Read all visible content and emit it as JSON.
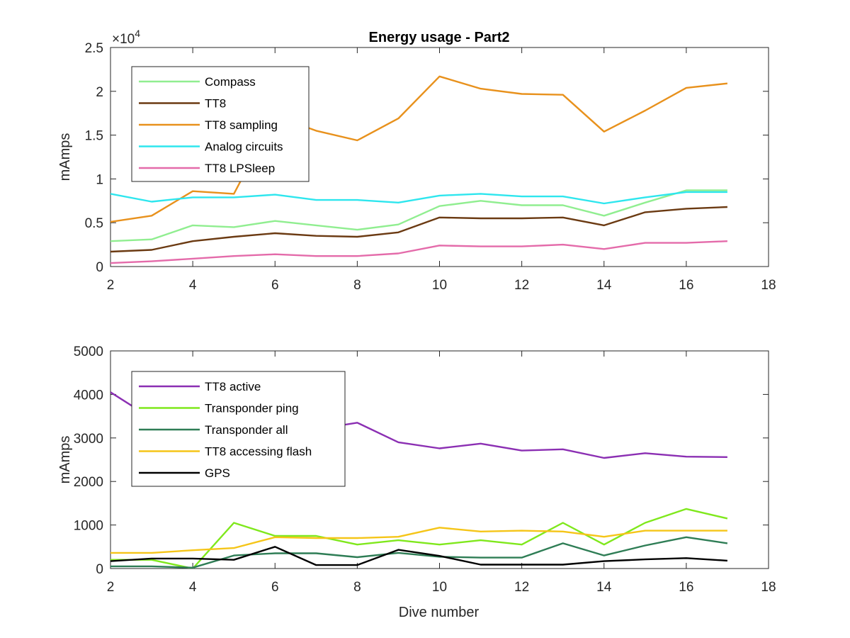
{
  "figure_title": "Energy usage - Part2",
  "chart_data": [
    {
      "type": "line",
      "title": "Energy usage - Part2",
      "xlabel": "",
      "ylabel": "mAmps",
      "xlim": [
        2,
        18
      ],
      "ylim": [
        0,
        25000
      ],
      "xticks": [
        2,
        4,
        6,
        8,
        10,
        12,
        14,
        16,
        18
      ],
      "xtick_labels": [
        "2",
        "4",
        "6",
        "8",
        "10",
        "12",
        "14",
        "16",
        "18"
      ],
      "yticks": [
        0,
        5000,
        10000,
        15000,
        20000,
        25000
      ],
      "ytick_labels": [
        "0",
        "0.5",
        "1",
        "1.5",
        "2",
        "2.5"
      ],
      "y_multiplier_base": "×10",
      "y_multiplier_exp": "4",
      "grid": false,
      "legend_position": "top-left",
      "x": [
        2,
        3,
        4,
        5,
        6,
        7,
        8,
        9,
        10,
        11,
        12,
        13,
        14,
        15,
        16,
        17
      ],
      "series": [
        {
          "name": "Compass",
          "color": "#90EE90",
          "values": [
            2900,
            3100,
            4700,
            4500,
            5200,
            4700,
            4200,
            4800,
            6900,
            7500,
            7000,
            7000,
            5800,
            7300,
            8700,
            8700
          ]
        },
        {
          "name": "TT8",
          "color": "#6B3A12",
          "values": [
            1700,
            1900,
            2900,
            3400,
            3800,
            3500,
            3400,
            3900,
            5600,
            5500,
            5500,
            5600,
            4700,
            6200,
            6600,
            6800
          ]
        },
        {
          "name": "TT8 sampling",
          "color": "#E8911C",
          "values": [
            5100,
            5800,
            8600,
            8300,
            17200,
            15500,
            14400,
            16900,
            21700,
            20300,
            19700,
            19600,
            15400,
            17800,
            20400,
            20900
          ]
        },
        {
          "name": "Analog circuits",
          "color": "#2EE6EE",
          "values": [
            8300,
            7400,
            7900,
            7900,
            8200,
            7600,
            7600,
            7300,
            8100,
            8300,
            8000,
            8000,
            7200,
            7900,
            8500,
            8500
          ]
        },
        {
          "name": "TT8 LPSleep",
          "color": "#E46BAA",
          "values": [
            400,
            600,
            900,
            1200,
            1400,
            1200,
            1200,
            1500,
            2400,
            2300,
            2300,
            2500,
            2000,
            2700,
            2700,
            2900
          ]
        }
      ]
    },
    {
      "type": "line",
      "title": "",
      "xlabel": "Dive number",
      "ylabel": "mAmps",
      "xlim": [
        2,
        18
      ],
      "ylim": [
        0,
        5000
      ],
      "xticks": [
        2,
        4,
        6,
        8,
        10,
        12,
        14,
        16,
        18
      ],
      "xtick_labels": [
        "2",
        "4",
        "6",
        "8",
        "10",
        "12",
        "14",
        "16",
        "18"
      ],
      "yticks": [
        0,
        1000,
        2000,
        3000,
        4000,
        5000
      ],
      "ytick_labels": [
        "0",
        "1000",
        "2000",
        "3000",
        "4000",
        "5000"
      ],
      "grid": false,
      "legend_position": "top-left",
      "x": [
        2,
        3,
        4,
        5,
        6,
        7,
        8,
        9,
        10,
        11,
        12,
        13,
        14,
        15,
        16,
        17
      ],
      "series": [
        {
          "name": "TT8 active",
          "color": "#8B2FB3",
          "values": [
            4050,
            3450,
            3150,
            3200,
            3250,
            3200,
            3350,
            2900,
            2760,
            2870,
            2710,
            2740,
            2540,
            2650,
            2570,
            2560
          ]
        },
        {
          "name": "Transponder ping",
          "color": "#7FE81C",
          "values": [
            200,
            200,
            0,
            1050,
            750,
            750,
            550,
            650,
            550,
            650,
            550,
            1050,
            550,
            1050,
            1370,
            1150
          ]
        },
        {
          "name": "Transponder all",
          "color": "#2E7D55",
          "values": [
            50,
            50,
            20,
            300,
            350,
            350,
            260,
            360,
            270,
            250,
            250,
            580,
            300,
            530,
            720,
            580
          ]
        },
        {
          "name": "TT8 accessing flash",
          "color": "#F5C518",
          "values": [
            360,
            360,
            420,
            470,
            720,
            700,
            700,
            730,
            940,
            850,
            870,
            850,
            730,
            870,
            870,
            870
          ]
        },
        {
          "name": "GPS",
          "color": "#000000",
          "values": [
            170,
            230,
            230,
            200,
            500,
            80,
            80,
            430,
            290,
            90,
            90,
            90,
            170,
            210,
            240,
            180
          ]
        }
      ]
    }
  ]
}
